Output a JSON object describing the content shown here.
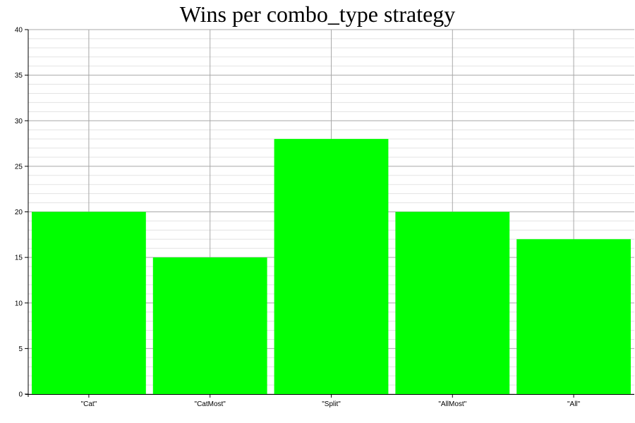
{
  "chart_data": {
    "type": "bar",
    "title": "Wins per combo_type strategy",
    "categories": [
      "\"Cat\"",
      "\"CatMost\"",
      "\"Split\"",
      "\"AllMost\"",
      "\"All\""
    ],
    "values": [
      20,
      15,
      28,
      20,
      17
    ],
    "ylim": [
      0,
      40
    ],
    "yticks": [
      0,
      5,
      10,
      15,
      20,
      25,
      30,
      35,
      40
    ],
    "minor_step": 1,
    "grid": true,
    "legend": "none",
    "bar_color": "#00ff00"
  }
}
